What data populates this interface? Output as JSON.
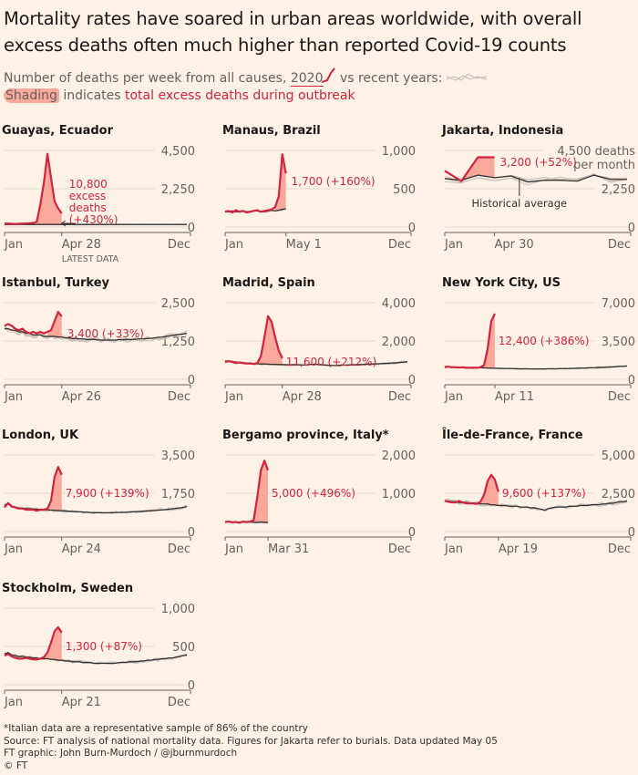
{
  "header": {
    "title": "Mortality rates have soared in urban areas worldwide, with overall excess deaths often much higher than reported Covid-19 counts",
    "subtitle_pre": "Number of deaths per week from all causes,",
    "subtitle_2020": "2020",
    "subtitle_post": "vs recent years:",
    "shading_word": "Shading",
    "shading_mid": "indicates",
    "shading_red": "total excess deaths during outbreak"
  },
  "colors": {
    "line_2020": "#d2243f",
    "shade": "#f9a99b",
    "average": "#33302e",
    "recent": "#c9bfb7",
    "background": "#fff1e5"
  },
  "chart_data": [
    {
      "type": "line",
      "title": "Guayas, Ecuador",
      "period": "week",
      "ymax": 4500,
      "ticks": [
        "4,500",
        "2,250",
        "0"
      ],
      "x_labels": [
        "Jan",
        "Apr 28",
        "Dec"
      ],
      "x_note": "LATEST DATA",
      "shade_from": 9,
      "series_2020": [
        200,
        200,
        190,
        180,
        190,
        200,
        210,
        220,
        240,
        300,
        1300,
        2600,
        4300,
        2900,
        1500,
        1100,
        800
      ],
      "average": [
        150,
        150,
        150,
        150,
        150,
        150,
        150,
        150,
        150,
        150,
        150,
        150,
        150,
        150,
        150,
        150,
        150,
        150,
        150,
        150,
        150,
        150,
        150,
        150,
        150,
        150,
        150,
        150,
        150,
        150,
        150,
        150,
        150,
        150,
        150,
        150,
        150,
        150,
        150,
        150,
        150,
        150,
        150,
        150,
        150,
        150,
        150,
        150,
        150,
        150,
        150,
        150
      ],
      "annotation": [
        "10,800",
        "excess",
        "deaths",
        "(+430%)"
      ]
    },
    {
      "type": "line",
      "title": "Manaus, Brazil",
      "period": "week",
      "ymax": 1000,
      "ticks": [
        "1,000",
        "500",
        "0"
      ],
      "x_labels": [
        "Jan",
        "May 1",
        "Dec"
      ],
      "shade_from": 14,
      "series_2020": [
        200,
        210,
        190,
        220,
        200,
        210,
        190,
        200,
        210,
        220,
        200,
        210,
        220,
        230,
        260,
        400,
        950,
        700
      ],
      "average": [
        200,
        200,
        210,
        200,
        200,
        210,
        200,
        200,
        210,
        210,
        200,
        200,
        210,
        220,
        210,
        220,
        230,
        240
      ],
      "annotation": [
        "1,700 (+160%)"
      ]
    },
    {
      "type": "line",
      "title": "Jakarta, Indonesia",
      "period": "month",
      "ymax": 4500,
      "ticks": [
        "4,500 deaths",
        "per month",
        "2,250",
        "0"
      ],
      "x_labels": [
        "Jan",
        "Apr 30",
        "Dec"
      ],
      "shade_from": 1,
      "series_2020": [
        3300,
        2700,
        4100,
        4100
      ],
      "average": [
        2850,
        2750,
        3050,
        2900,
        3000,
        2650,
        2750,
        2750,
        2700,
        3050,
        2800,
        2800
      ],
      "annotation": [
        "3,200 (+52%)"
      ],
      "average_label": "Historical average"
    },
    {
      "type": "line",
      "title": "Istanbul, Turkey",
      "period": "week",
      "ymax": 2500,
      "ticks": [
        "2,500",
        "1,250",
        "0"
      ],
      "x_labels": [
        "Jan",
        "Apr 26",
        "Dec"
      ],
      "shade_from": 12,
      "series_2020": [
        1750,
        1800,
        1750,
        1650,
        1600,
        1650,
        1550,
        1500,
        1550,
        1500,
        1550,
        1500,
        1550,
        1600,
        1900,
        2200,
        2050
      ],
      "average": [
        1650,
        1650,
        1600,
        1600,
        1550,
        1550,
        1500,
        1500,
        1450,
        1450,
        1450,
        1400,
        1400,
        1400,
        1400,
        1380,
        1380,
        1350,
        1350,
        1330,
        1330,
        1320,
        1320,
        1300,
        1300,
        1300,
        1290,
        1280,
        1280,
        1280,
        1280,
        1280,
        1290,
        1290,
        1300,
        1300,
        1300,
        1310,
        1320,
        1320,
        1330,
        1340,
        1350,
        1370,
        1380,
        1400,
        1420,
        1430,
        1450,
        1470,
        1480,
        1500
      ],
      "annotation": [
        "3,400 (+33%)"
      ]
    },
    {
      "type": "line",
      "title": "Madrid, Spain",
      "period": "week",
      "ymax": 4000,
      "ticks": [
        "4,000",
        "2,000",
        "0"
      ],
      "x_labels": [
        "Jan",
        "Apr 28",
        "Dec"
      ],
      "shade_from": 9,
      "series_2020": [
        900,
        950,
        900,
        850,
        880,
        850,
        820,
        830,
        800,
        850,
        1200,
        2200,
        3300,
        3000,
        2200,
        1500,
        1100
      ],
      "average": [
        950,
        950,
        920,
        900,
        880,
        860,
        850,
        840,
        820,
        810,
        800,
        800,
        790,
        780,
        780,
        770,
        770,
        760,
        760,
        760,
        760,
        750,
        750,
        760,
        780,
        780,
        770,
        760,
        740,
        730,
        720,
        720,
        730,
        740,
        740,
        750,
        760,
        760,
        770,
        780,
        790,
        800,
        800,
        810,
        820,
        830,
        840,
        850,
        860,
        880,
        900,
        920
      ],
      "annotation": [
        "11,600 (+212%)"
      ]
    },
    {
      "type": "line",
      "title": "New York City, US",
      "period": "week",
      "ymax": 7000,
      "ticks": [
        "7,000",
        "3,500",
        "0"
      ],
      "x_labels": [
        "Jan",
        "Apr 11",
        "Dec"
      ],
      "shade_from": 10,
      "series_2020": [
        1100,
        1150,
        1100,
        1100,
        1080,
        1100,
        1050,
        1050,
        1060,
        1050,
        1100,
        1300,
        2800,
        5300,
        6000
      ],
      "average": [
        1150,
        1150,
        1120,
        1100,
        1100,
        1080,
        1080,
        1060,
        1060,
        1050,
        1050,
        1040,
        1030,
        1020,
        1010,
        1000,
        1000,
        990,
        980,
        980,
        970,
        960,
        960,
        960,
        950,
        950,
        950,
        950,
        950,
        960,
        960,
        960,
        970,
        980,
        980,
        990,
        1000,
        1010,
        1020,
        1030,
        1040,
        1050,
        1060,
        1080,
        1090,
        1100,
        1120,
        1130,
        1150,
        1180,
        1200,
        1220
      ],
      "annotation": [
        "12,400 (+386%)"
      ]
    },
    {
      "type": "line",
      "title": "London, UK",
      "period": "week",
      "ymax": 3500,
      "ticks": [
        "3,500",
        "1,750",
        "0"
      ],
      "x_labels": [
        "Jan",
        "Apr 24",
        "Dec"
      ],
      "shade_from": 11,
      "series_2020": [
        1100,
        1300,
        1150,
        1100,
        1050,
        1050,
        1000,
        1000,
        1000,
        950,
        1000,
        1000,
        1050,
        1400,
        2500,
        2950,
        2600
      ],
      "average": [
        1200,
        1300,
        1150,
        1100,
        1080,
        1060,
        1050,
        1040,
        1030,
        1020,
        1010,
        1000,
        990,
        980,
        970,
        960,
        950,
        940,
        930,
        920,
        910,
        900,
        890,
        880,
        870,
        860,
        860,
        860,
        860,
        860,
        860,
        870,
        870,
        880,
        880,
        890,
        900,
        910,
        920,
        930,
        940,
        950,
        960,
        980,
        990,
        1000,
        1020,
        1040,
        1060,
        1080,
        1100,
        1150
      ],
      "annotation": [
        "7,900 (+139%)"
      ]
    },
    {
      "type": "line",
      "title": "Bergamo province, Italy*",
      "period": "week",
      "ymax": 2000,
      "ticks": [
        "2,000",
        "1,000",
        "0"
      ],
      "x_labels": [
        "Jan",
        "Mar 31",
        "Dec"
      ],
      "shade_from": 8,
      "series_2020": [
        250,
        260,
        240,
        250,
        230,
        260,
        250,
        260,
        300,
        900,
        1600,
        1850,
        1600
      ],
      "average": [
        260,
        260,
        250,
        250,
        240,
        250,
        240,
        250,
        240,
        240,
        250,
        240,
        240
      ],
      "annotation": [
        "5,000 (+496%)"
      ]
    },
    {
      "type": "line",
      "title": "Île-de-France, France",
      "period": "week",
      "ymax": 5000,
      "ticks": [
        "5,000",
        "2,500",
        "0"
      ],
      "x_labels": [
        "Jan",
        "Apr 19",
        "Dec"
      ],
      "shade_from": 10,
      "series_2020": [
        2000,
        1950,
        1900,
        1900,
        2000,
        1900,
        1850,
        1850,
        1850,
        1800,
        1950,
        2400,
        3300,
        3700,
        3400,
        2600
      ],
      "average": [
        2000,
        2000,
        1950,
        1950,
        1900,
        1900,
        1900,
        1850,
        1850,
        1850,
        1800,
        1800,
        1800,
        1750,
        1750,
        1700,
        1700,
        1700,
        1650,
        1650,
        1650,
        1600,
        1600,
        1600,
        1550,
        1550,
        1500,
        1450,
        1400,
        1500,
        1550,
        1600,
        1600,
        1600,
        1600,
        1650,
        1650,
        1650,
        1700,
        1700,
        1700,
        1750,
        1750,
        1750,
        1800,
        1800,
        1850,
        1850,
        1900,
        1950,
        1950,
        2000
      ],
      "annotation": [
        "9,600 (+137%)"
      ]
    },
    {
      "type": "line",
      "title": "Stockholm, Sweden",
      "period": "week",
      "ymax": 1000,
      "ticks": [
        "1,000",
        "500",
        "0"
      ],
      "x_labels": [
        "Jan",
        "Apr 21",
        "Dec"
      ],
      "shade_from": 11,
      "series_2020": [
        380,
        400,
        370,
        350,
        340,
        340,
        350,
        340,
        330,
        330,
        340,
        360,
        420,
        550,
        700,
        750,
        680
      ],
      "average": [
        400,
        420,
        390,
        380,
        370,
        370,
        360,
        360,
        350,
        350,
        340,
        340,
        340,
        330,
        330,
        320,
        320,
        310,
        310,
        300,
        300,
        300,
        290,
        290,
        290,
        280,
        280,
        280,
        280,
        280,
        280,
        280,
        290,
        290,
        290,
        300,
        300,
        300,
        310,
        310,
        320,
        320,
        330,
        330,
        340,
        340,
        350,
        350,
        360,
        370,
        380,
        390
      ],
      "annotation": [
        "1,300 (+87%)"
      ]
    }
  ],
  "footer": {
    "lines": [
      "*Italian data are a representative sample of 86% of the country",
      "Source: FT analysis of national mortality data. Figures for Jakarta refer to burials. Data updated May 05",
      "FT graphic: John Burn-Murdoch / @jburnmurdoch",
      "© FT"
    ]
  }
}
